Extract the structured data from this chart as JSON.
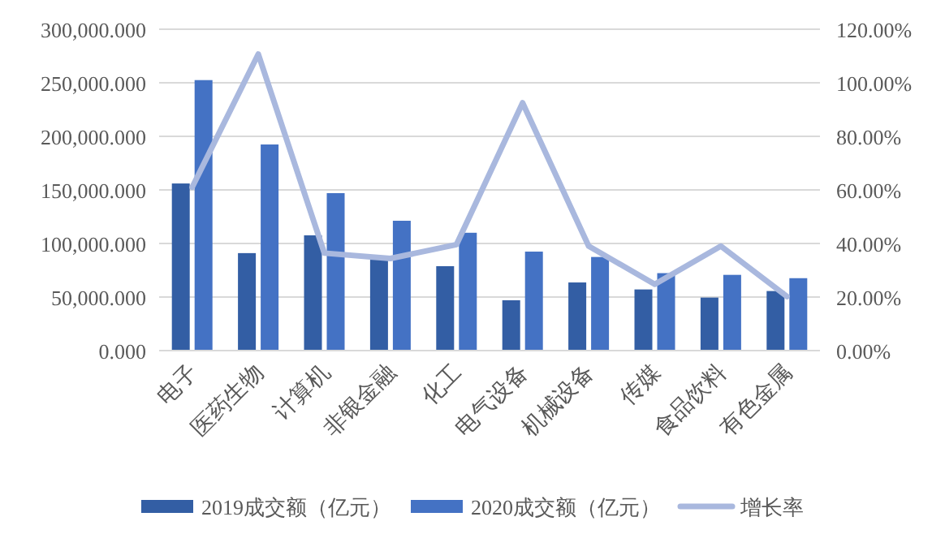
{
  "chart_data": {
    "type": "bar",
    "categories": [
      "电子",
      "医药生物",
      "计算机",
      "非银金融",
      "化工",
      "电气设备",
      "机械设备",
      "传媒",
      "食品饮料",
      "有色金属"
    ],
    "series": [
      {
        "name": "2019成交额（亿元）",
        "color": "#335ea4",
        "values": [
          156000,
          91000,
          107600,
          84800,
          78800,
          47000,
          63600,
          57100,
          49500,
          55600
        ]
      },
      {
        "name": "2020成交额（亿元）",
        "color": "#4472c4",
        "values": [
          252500,
          192400,
          147000,
          121200,
          110000,
          92400,
          87400,
          72300,
          70700,
          67600
        ]
      },
      {
        "name": "增长率",
        "type": "line",
        "axis": "y2",
        "color": "#a9b8de",
        "values": [
          61,
          110.7,
          36.4,
          34.4,
          39.6,
          92.5,
          39,
          24.8,
          39,
          20.2
        ]
      }
    ],
    "ylim": [
      0,
      300000
    ],
    "yticks": [
      {
        "value": 0,
        "label": "0.000"
      },
      {
        "value": 50000,
        "label": "50,000.000"
      },
      {
        "value": 100000,
        "label": "100,000.000"
      },
      {
        "value": 150000,
        "label": "150,000.000"
      },
      {
        "value": 200000,
        "label": "200,000.000"
      },
      {
        "value": 250000,
        "label": "250,000.000"
      },
      {
        "value": 300000,
        "label": "300,000.000"
      }
    ],
    "y2lim": [
      0,
      120
    ],
    "y2ticks": [
      {
        "value": 0,
        "label": "0.00%"
      },
      {
        "value": 20,
        "label": "20.00%"
      },
      {
        "value": 40,
        "label": "40.00%"
      },
      {
        "value": 60,
        "label": "60.00%"
      },
      {
        "value": 80,
        "label": "80.00%"
      },
      {
        "value": 100,
        "label": "100.00%"
      },
      {
        "value": 120,
        "label": "120.00%"
      }
    ],
    "grid": "y",
    "legend": "bottom",
    "marker": "none",
    "line_style": "solid"
  }
}
